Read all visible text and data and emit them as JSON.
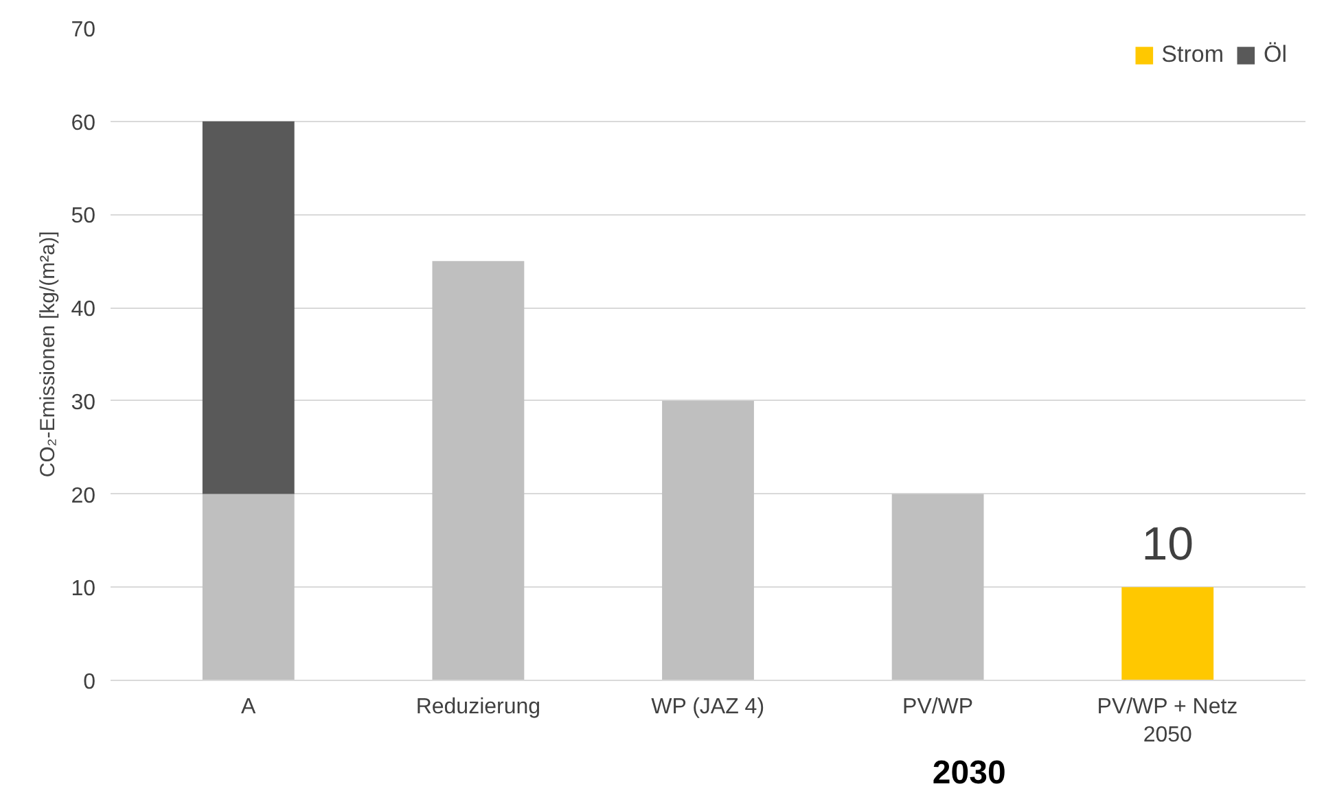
{
  "chart_data": {
    "type": "bar",
    "stacked": true,
    "ylabel": "CO₂-Emissionen [kg/(m²a)]",
    "categories": [
      "A",
      "Reduzierung",
      "WP (JAZ 4)",
      "PV/WP",
      "PV/WP + Netz\n2050"
    ],
    "series": [
      {
        "color": "#bfbfbf",
        "values": [
          20,
          45,
          30,
          20,
          null
        ]
      },
      {
        "name": "Strom",
        "color": "#ffc800",
        "values": [
          null,
          null,
          null,
          null,
          10
        ],
        "value_labels": [
          null,
          null,
          null,
          null,
          "10"
        ]
      },
      {
        "name": "Öl",
        "color": "#595959",
        "values": [
          40,
          null,
          null,
          null,
          null
        ]
      }
    ],
    "ylim": [
      0,
      70
    ],
    "yticks": [
      0,
      10,
      20,
      30,
      40,
      50,
      60,
      70
    ],
    "grid": "y",
    "legend": "top right",
    "annotations": [
      "2030"
    ]
  }
}
